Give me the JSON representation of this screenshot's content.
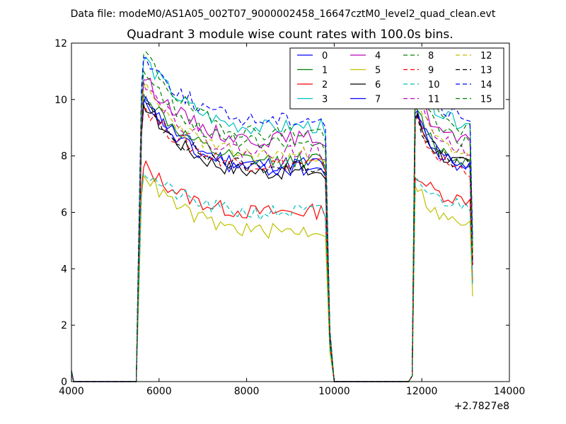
{
  "chart_data": {
    "type": "line",
    "suptitle": "Data file: modeM0/AS1A05_002T07_9000002458_16647cztM0_level2_quad_clean.evt",
    "title": "Quadrant 3 module wise count rates with 100.0s bins.",
    "xlabel": "",
    "ylabel": "",
    "xlim": [
      4000,
      14000
    ],
    "ylim": [
      0,
      12
    ],
    "xticks": [
      4000,
      6000,
      8000,
      10000,
      12000,
      14000
    ],
    "yticks": [
      0,
      2,
      4,
      6,
      8,
      10,
      12
    ],
    "x_offset_label": "+2.7827e8",
    "legend_position": "top-right",
    "legend_columns": 4,
    "series": [
      {
        "name": "0",
        "color": "#0000ff",
        "style": "solid",
        "level1": 7.7,
        "level2": 7.6,
        "peak": 10.0
      },
      {
        "name": "1",
        "color": "#008000",
        "style": "solid",
        "level1": 7.8,
        "level2": 7.7,
        "peak": 10.2
      },
      {
        "name": "2",
        "color": "#ff0000",
        "style": "solid",
        "level1": 6.0,
        "level2": 6.4,
        "peak": 7.6
      },
      {
        "name": "3",
        "color": "#00bfbf",
        "style": "solid",
        "level1": 9.0,
        "level2": 9.0,
        "peak": 11.4
      },
      {
        "name": "4",
        "color": "#bf00bf",
        "style": "solid",
        "level1": 8.6,
        "level2": 8.4,
        "peak": 10.7
      },
      {
        "name": "5",
        "color": "#bfbf00",
        "style": "solid",
        "level1": 5.3,
        "level2": 5.5,
        "peak": 7.3
      },
      {
        "name": "6",
        "color": "#000000",
        "style": "solid",
        "level1": 7.4,
        "level2": 7.6,
        "peak": 9.8
      },
      {
        "name": "7",
        "color": "#0000ff",
        "style": "solid",
        "level1": 7.5,
        "level2": 7.5,
        "peak": 9.9
      },
      {
        "name": "8",
        "color": "#008000",
        "style": "dashed",
        "level1": 8.8,
        "level2": 8.8,
        "peak": 11.6
      },
      {
        "name": "9",
        "color": "#ff0000",
        "style": "dashed",
        "level1": 7.7,
        "level2": 7.4,
        "peak": 9.7
      },
      {
        "name": "10",
        "color": "#00bfbf",
        "style": "dashed",
        "level1": 6.0,
        "level2": 6.2,
        "peak": 7.4
      },
      {
        "name": "11",
        "color": "#bf00bf",
        "style": "dashed",
        "level1": 8.1,
        "level2": 8.1,
        "peak": 10.6
      },
      {
        "name": "12",
        "color": "#bfbf00",
        "style": "dashed",
        "level1": 8.0,
        "level2": 8.0,
        "peak": 10.4
      },
      {
        "name": "13",
        "color": "#000000",
        "style": "dashed",
        "level1": 7.6,
        "level2": 7.6,
        "peak": 9.8
      },
      {
        "name": "14",
        "color": "#0000ff",
        "style": "dashed",
        "level1": 9.3,
        "level2": 9.2,
        "peak": 11.5
      },
      {
        "name": "15",
        "color": "#008000",
        "style": "dashed",
        "level1": 8.4,
        "level2": 8.4,
        "peak": 11.0
      }
    ]
  }
}
